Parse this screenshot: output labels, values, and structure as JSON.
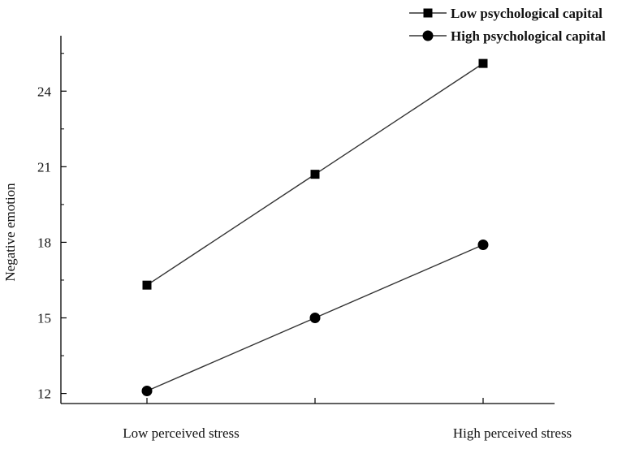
{
  "chart_data": {
    "type": "line",
    "categories": [
      "Low perceived stress",
      "",
      "High perceived stress"
    ],
    "x": [
      0,
      1,
      2
    ],
    "series": [
      {
        "name": "Low psychological capital",
        "marker": "square",
        "values": [
          16.3,
          20.7,
          25.1
        ]
      },
      {
        "name": "High psychological capital",
        "marker": "circle",
        "values": [
          12.1,
          15.0,
          17.9
        ]
      }
    ],
    "title": "",
    "xlabel": "",
    "ylabel": "Negative emotion",
    "ylim": [
      11.6,
      26.2
    ],
    "yticks": [
      12,
      15,
      18,
      21,
      24
    ],
    "ytick_labels": [
      "12",
      "15",
      "18",
      "21",
      "24"
    ],
    "grid": false,
    "legend": "top-right",
    "colors": {
      "line": "#333333",
      "marker": "#000000",
      "axis": "#000000"
    }
  }
}
